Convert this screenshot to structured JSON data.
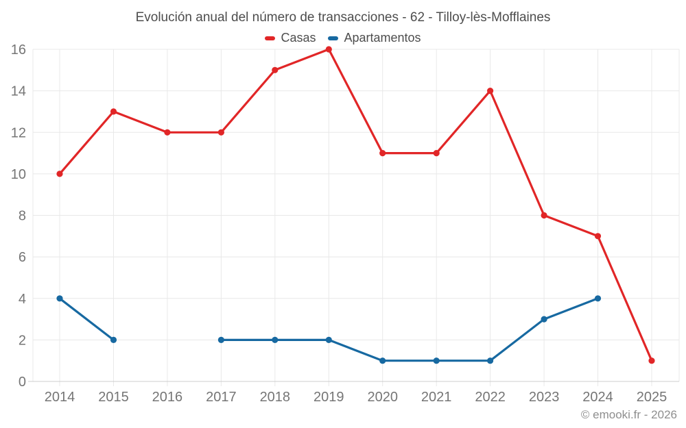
{
  "header": {
    "title": "Evolución anual del número de transacciones - 62 - Tilloy-lès-Mofflaines"
  },
  "legend": {
    "items": [
      {
        "label": "Casas",
        "color": "#e12627"
      },
      {
        "label": "Apartamentos",
        "color": "#1769a1"
      }
    ]
  },
  "footer": {
    "credit": "© emooki.fr - 2026"
  },
  "colors": {
    "background": "#ffffff",
    "grid": "#e8e8e8",
    "axis": "#cccccc",
    "tick_label": "#757575",
    "title": "#4d4d4d",
    "footer": "#8e8e8e"
  },
  "chart_data": {
    "type": "line",
    "title": "Evolución anual del número de transacciones - 62 - Tilloy-lès-Mofflaines",
    "categories": [
      "2014",
      "2015",
      "2016",
      "2017",
      "2018",
      "2019",
      "2020",
      "2021",
      "2022",
      "2023",
      "2024",
      "2025"
    ],
    "series": [
      {
        "name": "Casas",
        "color": "#e12627",
        "values": [
          10,
          13,
          12,
          12,
          15,
          16,
          11,
          11,
          14,
          8,
          7,
          1
        ]
      },
      {
        "name": "Apartamentos",
        "color": "#1769a1",
        "values": [
          4,
          2,
          null,
          2,
          2,
          2,
          1,
          1,
          1,
          3,
          4,
          null
        ]
      }
    ],
    "xlabel": "",
    "ylabel": "",
    "ylim": [
      0,
      16
    ],
    "ytick_step": 2,
    "grid": true,
    "legend_position": "top"
  }
}
